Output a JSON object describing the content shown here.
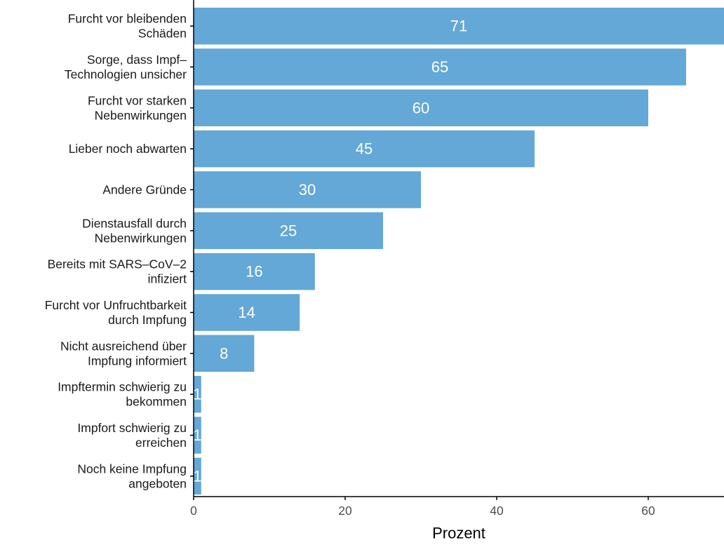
{
  "chart_data": {
    "type": "bar",
    "orientation": "horizontal",
    "categories": [
      [
        "Furcht vor bleibenden",
        "Schäden"
      ],
      [
        "Sorge, dass Impf–",
        "Technologien unsicher"
      ],
      [
        "Furcht vor starken",
        "Nebenwirkungen"
      ],
      [
        "Lieber noch abwarten"
      ],
      [
        "Andere Gründe"
      ],
      [
        "Dienstausfall durch",
        "Nebenwirkungen"
      ],
      [
        "Bereits mit SARS–CoV–2",
        "infiziert"
      ],
      [
        "Furcht vor Unfruchtbarkeit",
        "durch Impfung"
      ],
      [
        "Nicht ausreichend über",
        "Impfung informiert"
      ],
      [
        "Impftermin schwierig zu",
        "bekommen"
      ],
      [
        "Impfort schwierig zu",
        "erreichen"
      ],
      [
        "Noch keine Impfung",
        "angeboten"
      ]
    ],
    "values": [
      71,
      65,
      60,
      45,
      30,
      25,
      16,
      14,
      8,
      1,
      1,
      1
    ],
    "data_labels": [
      "71",
      "65",
      "60",
      "45",
      "30",
      "25",
      "16",
      "14",
      "8",
      "1",
      "1",
      "1"
    ],
    "xlabel": "Prozent",
    "ylabel": "",
    "title": "",
    "xlim": [
      0,
      70
    ],
    "x_ticks": [
      0,
      20,
      40,
      60
    ],
    "x_tick_labels": [
      "0",
      "20",
      "40",
      "60"
    ],
    "grid": false,
    "legend": "none",
    "colors": {
      "bar": "#63A8D6",
      "bar_label": "#ffffff",
      "axis": "#000000",
      "tick_label": "#4d4d4d",
      "category_label": "#1a1a1a",
      "axis_title": "#000000"
    }
  }
}
